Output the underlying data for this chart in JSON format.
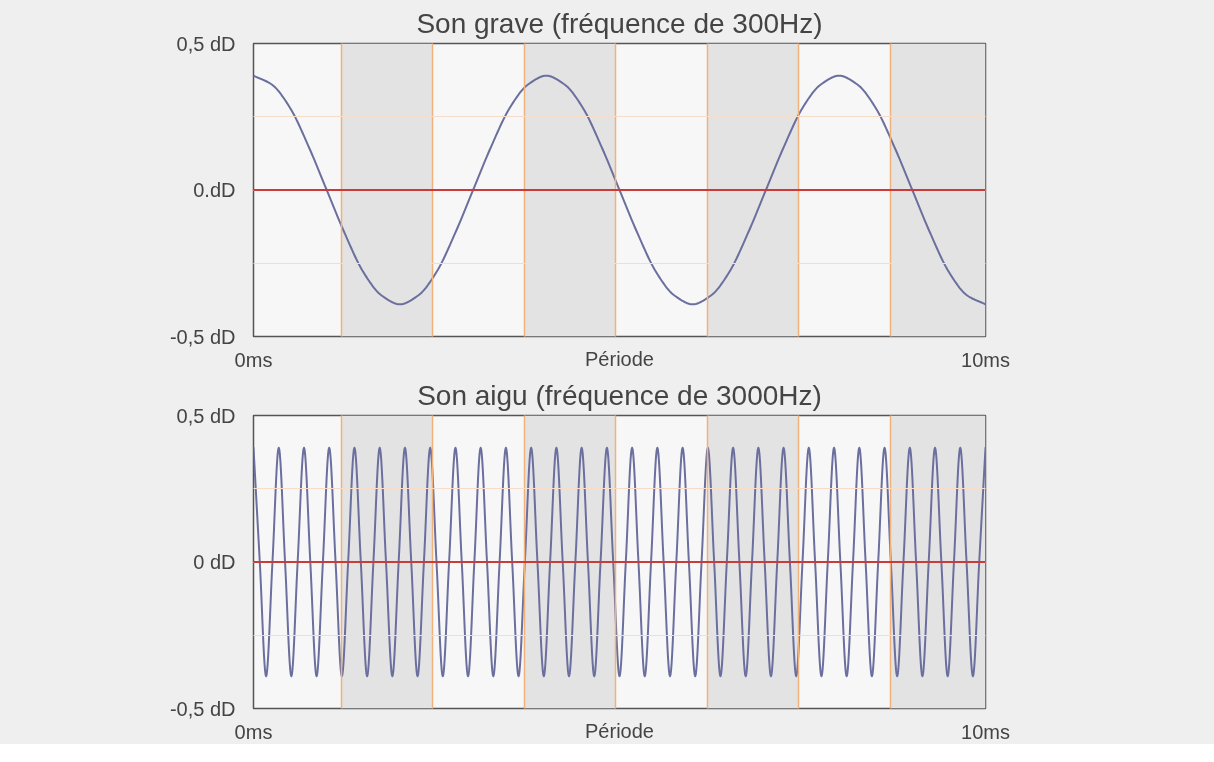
{
  "chart_data": [
    {
      "type": "line",
      "title": "Son grave (fréquence de 300Hz)",
      "xlabel": "Période",
      "xlim": [
        0,
        10
      ],
      "ylim": [
        -0.5,
        0.5
      ],
      "xticks": [
        {
          "value": 0,
          "label": "0ms"
        },
        {
          "value": 1.2,
          "label": null
        },
        {
          "value": 2.45,
          "label": null
        },
        {
          "value": 3.7,
          "label": null
        },
        {
          "value": 4.95,
          "label": null
        },
        {
          "value": 6.2,
          "label": null
        },
        {
          "value": 7.45,
          "label": null
        },
        {
          "value": 8.7,
          "label": null
        },
        {
          "value": 10,
          "label": "10ms"
        }
      ],
      "yticks": [
        {
          "value": -0.5,
          "label": "-0,5 dD"
        },
        {
          "value": -0.25,
          "label": null
        },
        {
          "value": 0,
          "label": "0.dD"
        },
        {
          "value": 0.25,
          "label": null
        },
        {
          "value": 0.5,
          "label": "0,5 dD"
        }
      ],
      "grid": true,
      "ref_lines": [
        {
          "axis": "y",
          "value": 0,
          "color": "#cc3b3b"
        }
      ],
      "bands": [
        {
          "axis": "x",
          "from": 1.2,
          "to": 2.45,
          "color": "#e3e3e3"
        },
        {
          "axis": "x",
          "from": 3.7,
          "to": 4.95,
          "color": "#e3e3e3"
        },
        {
          "axis": "x",
          "from": 6.2,
          "to": 7.45,
          "color": "#e3e3e3"
        },
        {
          "axis": "x",
          "from": 8.7,
          "to": 10,
          "color": "#e3e3e3"
        }
      ],
      "x": [
        0,
        0.25,
        0.5,
        0.75,
        1,
        1.25,
        1.5,
        1.75,
        2,
        2.25,
        2.5,
        2.75,
        3,
        3.25,
        3.5,
        3.75,
        4,
        4.25,
        4.5,
        4.75,
        5,
        5.25,
        5.5,
        5.75,
        6,
        6.25,
        6.5,
        6.75,
        7,
        7.25,
        7.5,
        7.75,
        8,
        8.25,
        8.5,
        8.75,
        9,
        9.25,
        9.5,
        9.75,
        10
      ],
      "series": [
        {
          "color": "#6b6f9e",
          "values": [
            0.39,
            0.36,
            0.28,
            0.15,
            0,
            -0.15,
            -0.28,
            -0.36,
            -0.39,
            -0.36,
            -0.28,
            -0.15,
            0,
            0.15,
            0.28,
            0.36,
            0.39,
            0.36,
            0.28,
            0.15,
            0,
            -0.15,
            -0.28,
            -0.36,
            -0.39,
            -0.36,
            -0.28,
            -0.15,
            0,
            0.15,
            0.28,
            0.36,
            0.39,
            0.36,
            0.28,
            0.15,
            0,
            -0.15,
            -0.28,
            -0.36,
            -0.39
          ]
        }
      ]
    },
    {
      "type": "line",
      "title": "Son aigu (fréquence de 3000Hz)",
      "xlabel": "Période",
      "xlim": [
        0,
        10
      ],
      "ylim": [
        -0.5,
        0.5
      ],
      "xticks": [
        {
          "value": 0,
          "label": "0ms"
        },
        {
          "value": 1.2,
          "label": null
        },
        {
          "value": 2.45,
          "label": null
        },
        {
          "value": 3.7,
          "label": null
        },
        {
          "value": 4.95,
          "label": null
        },
        {
          "value": 6.2,
          "label": null
        },
        {
          "value": 7.45,
          "label": null
        },
        {
          "value": 8.7,
          "label": null
        },
        {
          "value": 10,
          "label": "10ms"
        }
      ],
      "yticks": [
        {
          "value": -0.5,
          "label": "-0,5 dD"
        },
        {
          "value": -0.25,
          "label": null
        },
        {
          "value": 0,
          "label": "0 dD"
        },
        {
          "value": 0.25,
          "label": null
        },
        {
          "value": 0.5,
          "label": "0,5 dD"
        }
      ],
      "grid": true,
      "ref_lines": [
        {
          "axis": "y",
          "value": 0,
          "color": "#cc3b3b"
        }
      ],
      "bands": [
        {
          "axis": "x",
          "from": 1.2,
          "to": 2.45,
          "color": "#e3e3e3"
        },
        {
          "axis": "x",
          "from": 3.7,
          "to": 4.95,
          "color": "#e3e3e3"
        },
        {
          "axis": "x",
          "from": 6.2,
          "to": 7.45,
          "color": "#e3e3e3"
        },
        {
          "axis": "x",
          "from": 8.7,
          "to": 10,
          "color": "#e3e3e3"
        }
      ],
      "x": [
        0,
        0.086,
        0.172,
        0.259,
        0.345,
        0.431,
        0.517,
        0.603,
        0.69,
        0.776,
        0.862,
        0.948,
        1.034,
        1.121,
        1.207,
        1.293,
        1.379,
        1.466,
        1.552,
        1.638,
        1.724,
        1.81,
        1.897,
        1.983,
        2.069,
        2.155,
        2.241,
        2.328,
        2.414,
        2.5,
        2.586,
        2.672,
        2.759,
        2.845,
        2.931,
        3.017,
        3.103,
        3.19,
        3.276,
        3.362,
        3.448,
        3.534,
        3.621,
        3.707,
        3.793,
        3.879,
        3.966,
        4.052,
        4.138,
        4.224,
        4.31,
        4.397,
        4.483,
        4.569,
        4.655,
        4.741,
        4.828,
        4.914,
        5,
        5.086,
        5.172,
        5.259,
        5.345,
        5.431,
        5.517,
        5.603,
        5.69,
        5.776,
        5.862,
        5.948,
        6.034,
        6.121,
        6.207,
        6.293,
        6.379,
        6.466,
        6.552,
        6.638,
        6.724,
        6.81,
        6.897,
        6.983,
        7.069,
        7.155,
        7.241,
        7.328,
        7.414,
        7.5,
        7.586,
        7.672,
        7.759,
        7.845,
        7.931,
        8.017,
        8.103,
        8.19,
        8.276,
        8.362,
        8.448,
        8.534,
        8.621,
        8.707,
        8.793,
        8.879,
        8.966,
        9.052,
        9.138,
        9.224,
        9.31,
        9.397,
        9.483,
        9.569,
        9.655,
        9.741,
        9.828,
        9.914,
        10
      ],
      "series": [
        {
          "color": "#6b6f9e",
          "values": [
            0.39,
            0,
            -0.39,
            0,
            0.39,
            0,
            -0.39,
            0,
            0.39,
            0,
            -0.39,
            0,
            0.39,
            0,
            -0.39,
            0,
            0.39,
            0,
            -0.39,
            0,
            0.39,
            0,
            -0.39,
            0,
            0.39,
            0,
            -0.39,
            0,
            0.39,
            0,
            -0.39,
            0,
            0.39,
            0,
            -0.39,
            0,
            0.39,
            0,
            -0.39,
            0,
            0.39,
            0,
            -0.39,
            0,
            0.39,
            0,
            -0.39,
            0,
            0.39,
            0,
            -0.39,
            0,
            0.39,
            0,
            -0.39,
            0,
            0.39,
            0,
            -0.39,
            0,
            0.39,
            0,
            -0.39,
            0,
            0.39,
            0,
            -0.39,
            0,
            0.39,
            0,
            -0.39,
            0,
            0.39,
            0,
            -0.39,
            0,
            0.39,
            0,
            -0.39,
            0,
            0.39,
            0,
            -0.39,
            0,
            0.39,
            0,
            -0.39,
            0,
            0.39,
            0,
            -0.39,
            0,
            0.39,
            0,
            -0.39,
            0,
            0.39,
            0,
            -0.39,
            0,
            0.39,
            0,
            -0.39,
            0,
            0.39,
            0,
            -0.39,
            0,
            0.39,
            0,
            -0.39,
            0,
            0.39,
            0,
            -0.39,
            0,
            0.39
          ]
        }
      ]
    }
  ]
}
